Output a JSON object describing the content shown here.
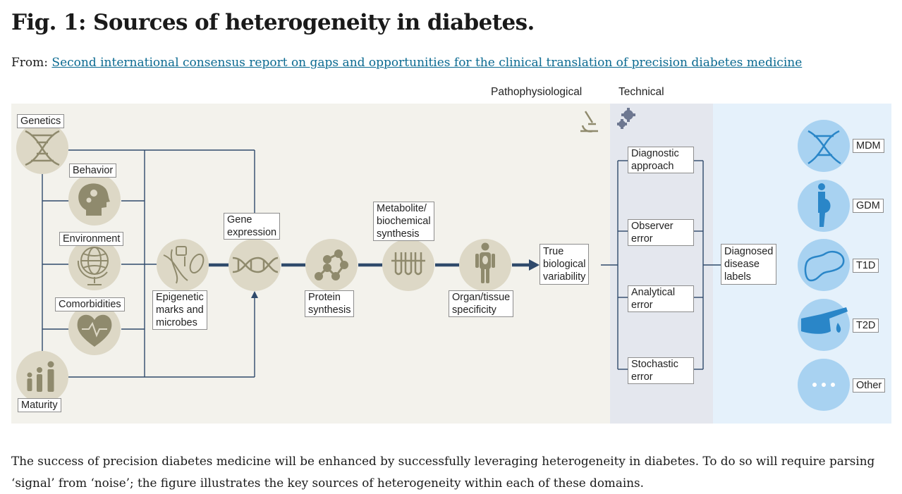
{
  "figure": {
    "title": "Fig. 1: Sources of heterogeneity in diabetes.",
    "from_label": "From:",
    "source_link": "Second international consensus report on gaps and opportunities for the clinical translation of precision diabetes medicine",
    "caption": "The success of precision diabetes medicine will be enhanced by successfully leveraging heterogeneity in diabetes. To do so will require parsing ‘signal’ from ‘noise’; the figure illustrates the key sources of heterogeneity within each of these domains."
  },
  "sections": {
    "pathophysiological": "Pathophysiological",
    "technical": "Technical"
  },
  "sources": {
    "genetics": "Genetics",
    "behavior": "Behavior",
    "environment": "Environment",
    "comorbidities": "Comorbidities",
    "maturity": "Maturity"
  },
  "pathway": {
    "epigenetic": [
      "Epigenetic",
      "marks and",
      "microbes"
    ],
    "gene_expression": [
      "Gene",
      "expression"
    ],
    "protein": [
      "Protein",
      "synthesis"
    ],
    "metabolite": [
      "Metabolite/",
      "biochemical",
      "synthesis"
    ],
    "organ": [
      "Organ/tissue",
      "specificity"
    ],
    "true_variability": [
      "True",
      "biological",
      "variability"
    ]
  },
  "technical": {
    "diagnostic": [
      "Diagnostic",
      "approach"
    ],
    "observer": [
      "Observer",
      "error"
    ],
    "analytical": [
      "Analytical",
      "error"
    ],
    "stochastic": [
      "Stochastic",
      "error"
    ]
  },
  "diagnosed": [
    "Diagnosed",
    "disease",
    "labels"
  ],
  "disease_labels": {
    "mdm": "MDM",
    "gdm": "GDM",
    "t1d": "T1D",
    "t2d": "T2D",
    "other": "Other"
  },
  "colors": {
    "patho_bg": "#f3f2ec",
    "tech_bg": "#e4e7ee",
    "diag_bg": "#e5f1fb",
    "patho_circle": "#ddd8c6",
    "patho_icon": "#8f8a6d",
    "diag_circle": "#a8d2f1",
    "diag_icon": "#2a86c8",
    "line": "#2f4a6b",
    "link": "#0b6a91"
  }
}
